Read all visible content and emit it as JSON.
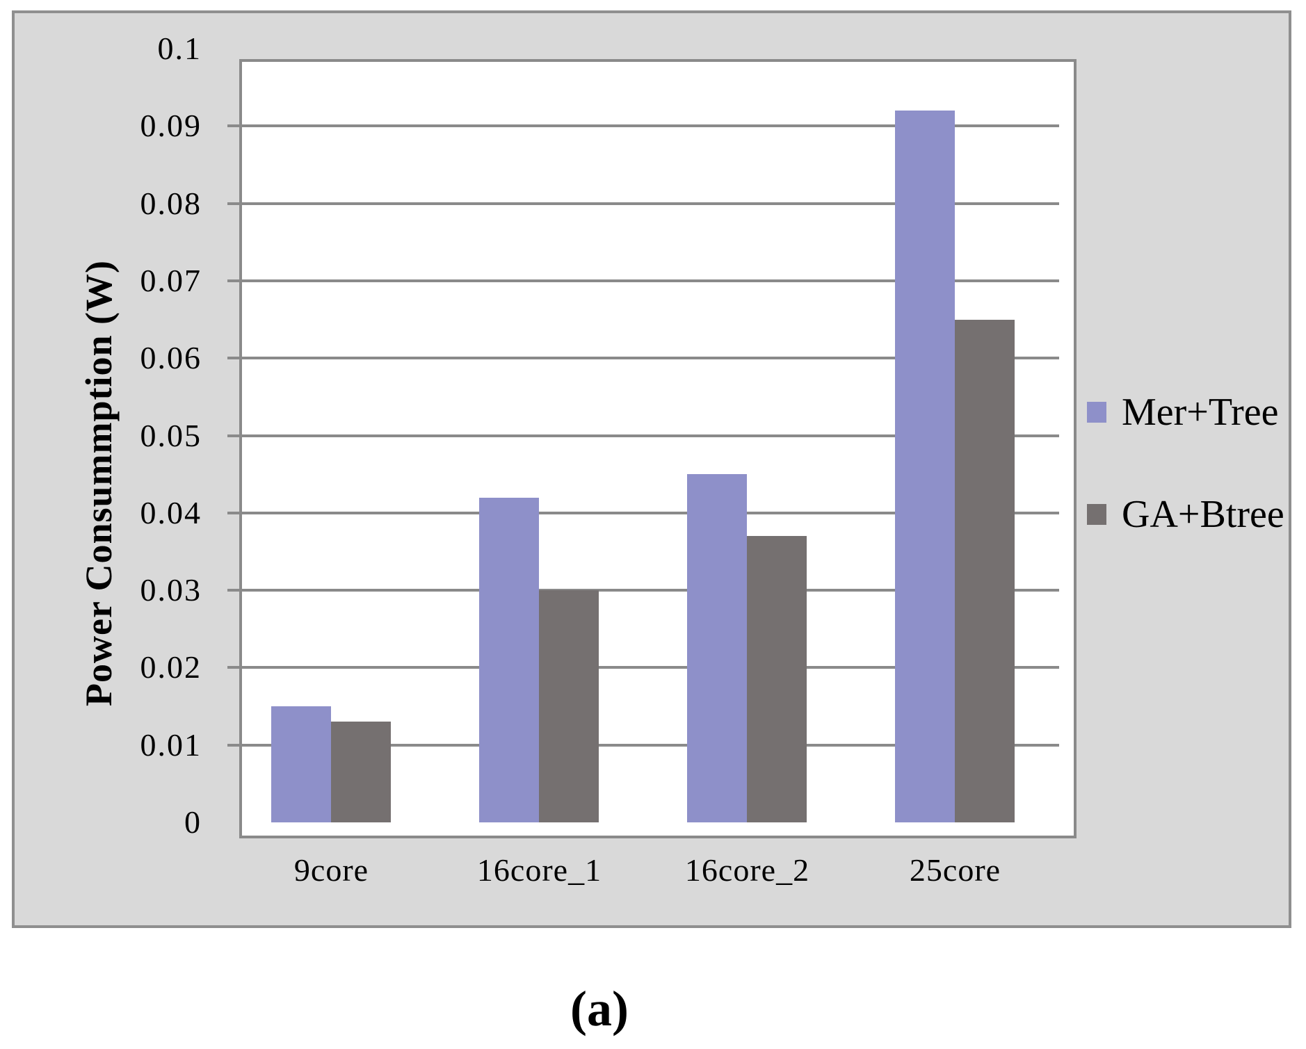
{
  "figure": {
    "caption": "(a)"
  },
  "chart_data": {
    "type": "bar",
    "categories": [
      "9core",
      "16core_1",
      "16core_2",
      "25core"
    ],
    "series": [
      {
        "name": "Mer+Tree",
        "color": "#8E90C9",
        "values": [
          0.015,
          0.042,
          0.045,
          0.092
        ]
      },
      {
        "name": "GA+Btree",
        "color": "#757070",
        "values": [
          0.013,
          0.03,
          0.037,
          0.065
        ]
      }
    ],
    "title": "",
    "xlabel": "",
    "ylabel": "Power Consummption (W)",
    "ylim": [
      0,
      0.1
    ],
    "ytick_step": 0.01,
    "ytick_labels": [
      "0",
      "0.01",
      "0.02",
      "0.03",
      "0.04",
      "0.05",
      "0.06",
      "0.07",
      "0.08",
      "0.09",
      "0.1"
    ],
    "grid": true,
    "legend_position": "right"
  },
  "colors": {
    "panel_background": "#D9D9D9",
    "plot_background": "#FFFFFF",
    "gridline": "#8A8A8A",
    "panel_border": "#8F8F8F"
  }
}
